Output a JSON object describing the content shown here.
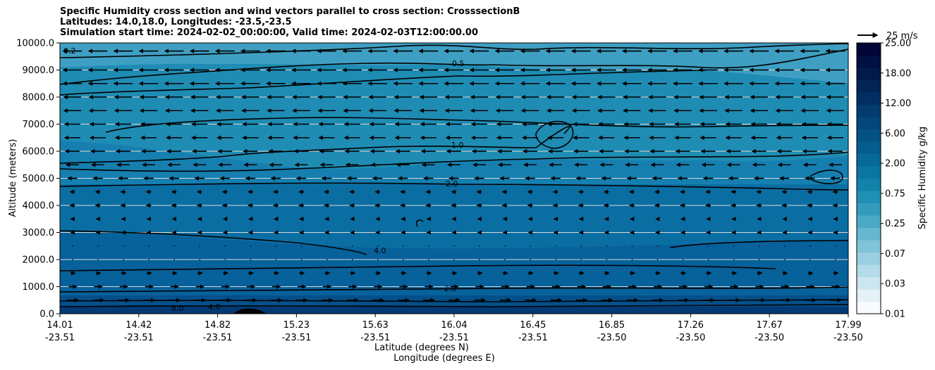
{
  "chart_data": {
    "type": "contourf",
    "title": [
      "Specific Humidity cross section and wind vectors parallel to cross section: CrosssectionB",
      "Latitudes: 14.0,18.0, Longitudes: -23.5,-23.5",
      "Simulation start time: 2024-02-02_00:00:00, Valid time: 2024-02-03T12:00:00.00"
    ],
    "ylabel": "Altitude (meters)",
    "xlabel_lines": [
      "Latitude (degrees N)",
      "Longitude (degrees E)"
    ],
    "ylim": [
      0,
      10000
    ],
    "y_ticks": [
      0,
      1000,
      2000,
      3000,
      4000,
      5000,
      6000,
      7000,
      8000,
      9000,
      10000
    ],
    "y_tick_labels": [
      "0.0",
      "1000.0",
      "2000.0",
      "3000.0",
      "4000.0",
      "5000.0",
      "6000.0",
      "7000.0",
      "8000.0",
      "9000.0",
      "10000.0"
    ],
    "x_ticks": [
      {
        "lat": "14.01",
        "lon": "-23.51"
      },
      {
        "lat": "14.42",
        "lon": "-23.51"
      },
      {
        "lat": "14.82",
        "lon": "-23.51"
      },
      {
        "lat": "15.23",
        "lon": "-23.51"
      },
      {
        "lat": "15.63",
        "lon": "-23.51"
      },
      {
        "lat": "16.04",
        "lon": "-23.51"
      },
      {
        "lat": "16.45",
        "lon": "-23.51"
      },
      {
        "lat": "16.85",
        "lon": "-23.50"
      },
      {
        "lat": "17.26",
        "lon": "-23.50"
      },
      {
        "lat": "17.67",
        "lon": "-23.50"
      },
      {
        "lat": "17.99",
        "lon": "-23.50"
      }
    ],
    "colorbar": {
      "label": "Specific Humidity g/kg",
      "tick_labels": [
        "0.01",
        "0.03",
        "0.07",
        "0.25",
        "0.75",
        "2.00",
        "6.00",
        "12.00",
        "18.00",
        "25.00"
      ]
    },
    "quiver_key": "25 m/s",
    "contour_labels": [
      "0.2",
      "0.5",
      "1.0",
      "2.0",
      "4.0",
      "8.0"
    ],
    "wind_rows": [
      {
        "altitude": 9700,
        "u": -12
      },
      {
        "altitude": 9000,
        "u": -12
      },
      {
        "altitude": 8500,
        "u": -12
      },
      {
        "altitude": 8000,
        "u": -11
      },
      {
        "altitude": 7500,
        "u": -11
      },
      {
        "altitude": 7000,
        "u": -10
      },
      {
        "altitude": 6500,
        "u": -10
      },
      {
        "altitude": 6000,
        "u": -9
      },
      {
        "altitude": 5500,
        "u": -8
      },
      {
        "altitude": 5000,
        "u": -6
      },
      {
        "altitude": 4500,
        "u": -3
      },
      {
        "altitude": 4000,
        "u": -3
      },
      {
        "altitude": 3500,
        "u": -2
      },
      {
        "altitude": 3000,
        "u": -2
      },
      {
        "altitude": 2500,
        "u": -1
      },
      {
        "altitude": 2000,
        "u": 1
      },
      {
        "altitude": 1500,
        "u": 3
      },
      {
        "altitude": 1000,
        "u": 5
      },
      {
        "altitude": 500,
        "u": 7
      }
    ]
  }
}
